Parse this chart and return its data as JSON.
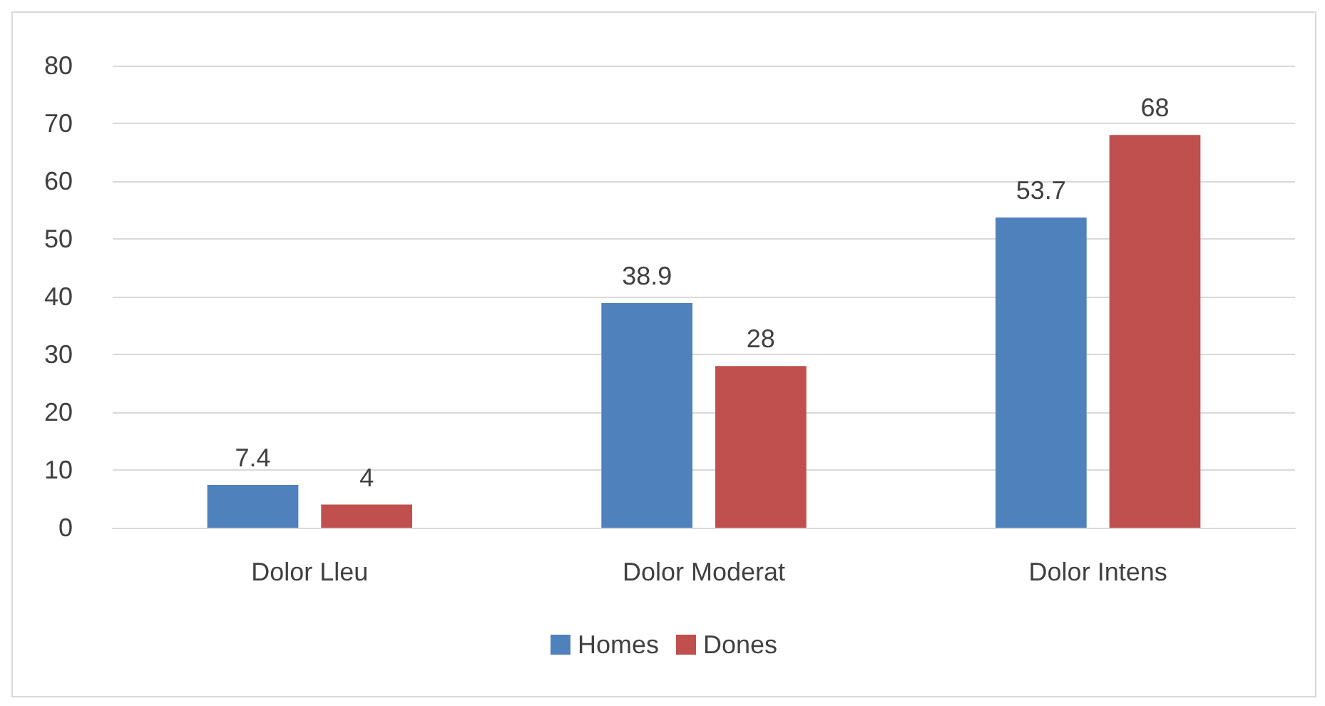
{
  "chart_data": {
    "type": "bar",
    "categories": [
      "Dolor Lleu",
      "Dolor Moderat",
      "Dolor Intens"
    ],
    "series": [
      {
        "name": "Homes",
        "color": "#4f81bd",
        "values": [
          7.4,
          38.9,
          53.7
        ]
      },
      {
        "name": "Dones",
        "color": "#c0504d",
        "values": [
          4,
          28,
          68
        ]
      }
    ],
    "ylim": [
      0,
      80
    ],
    "yticks": [
      0,
      10,
      20,
      30,
      40,
      50,
      60,
      70,
      80
    ],
    "grid": "y",
    "legend": "bottom",
    "data_labels": true
  }
}
